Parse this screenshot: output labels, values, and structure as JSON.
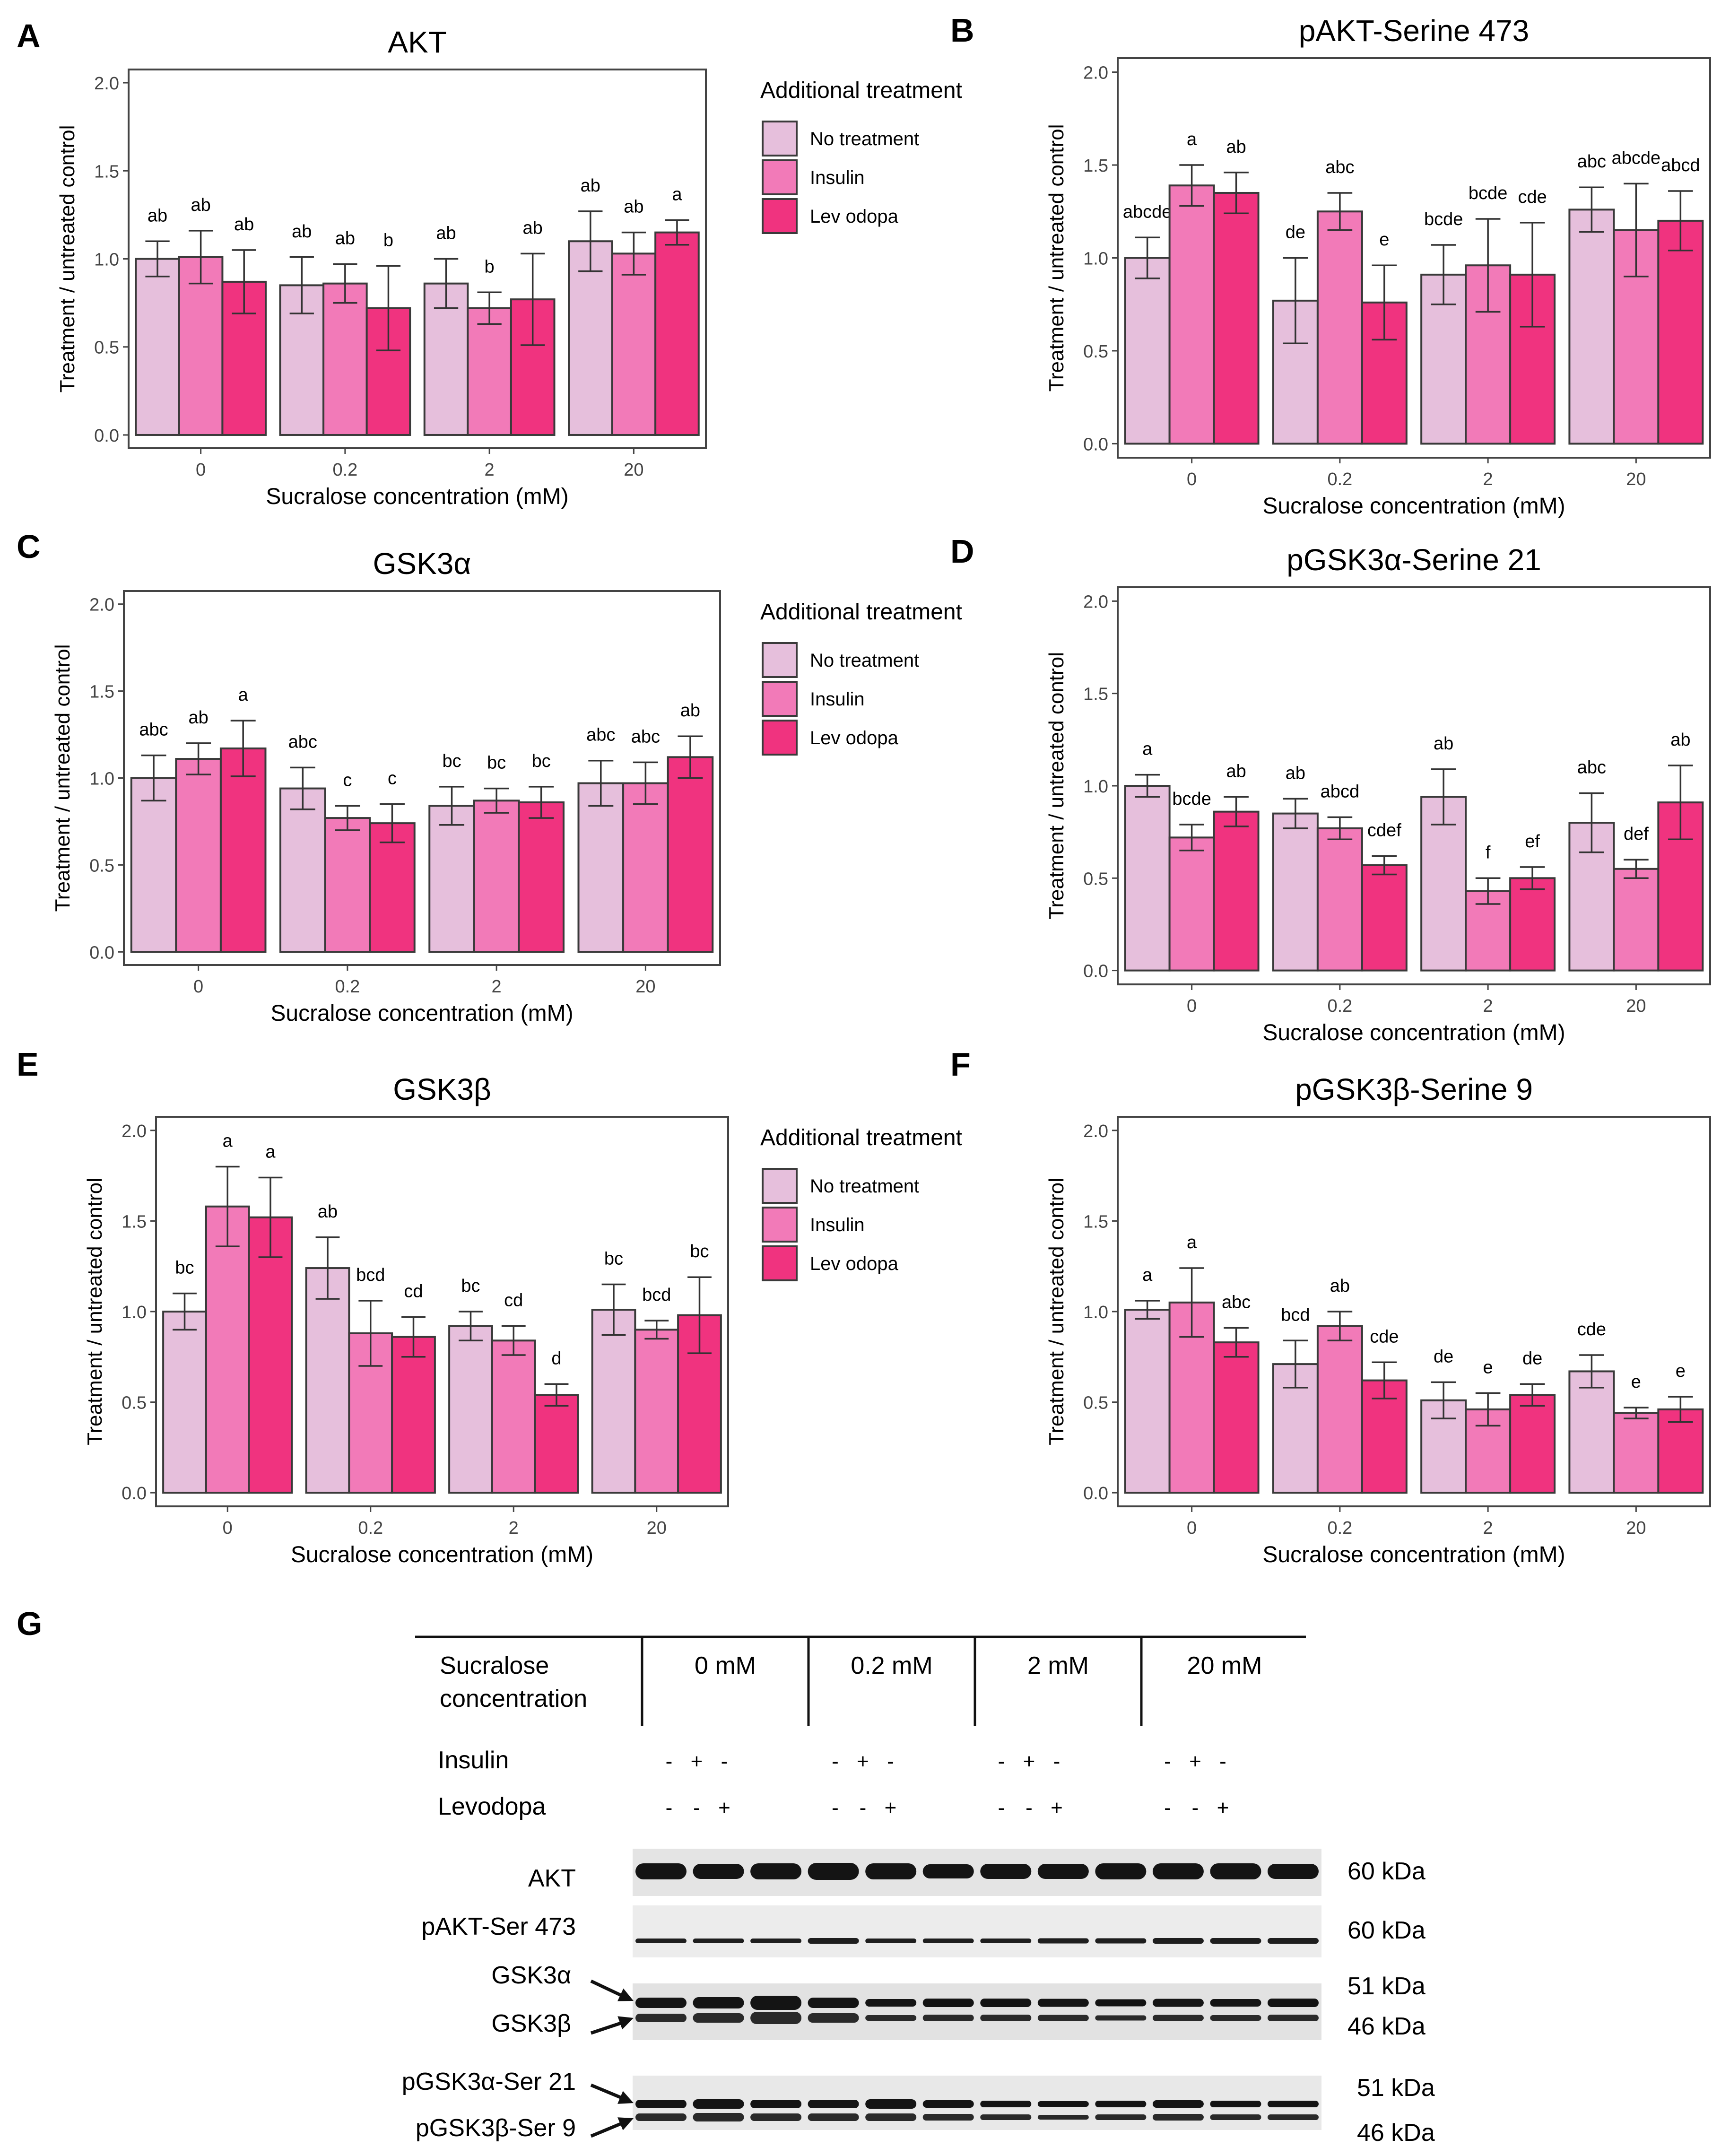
{
  "figure": {
    "y_axis_label": "Treatment / untreated control",
    "x_axis_label": "Sucralose concentration (mM)",
    "legend_title": "Additional treatment",
    "legend_items": [
      "No treatment",
      "Insulin",
      "Lev odopa"
    ],
    "series_colors": [
      "#e6bfdc",
      "#f27ab8",
      "#f0337f"
    ]
  },
  "chart_data": [
    {
      "panel": "A",
      "type": "bar",
      "title": "AKT",
      "categories": [
        "0",
        "0.2",
        "2",
        "20"
      ],
      "xlabel": "Sucralose concentration (mM)",
      "ylabel": "Treatment / untreated control",
      "ylim": [
        0,
        2.0
      ],
      "yticks": [
        "0.0",
        "0.5",
        "1.0",
        "1.5",
        "2.0"
      ],
      "legend": "right",
      "series": [
        {
          "name": "No treatment",
          "values": [
            1.0,
            0.85,
            0.86,
            1.1
          ],
          "errors": [
            0.1,
            0.16,
            0.14,
            0.17
          ],
          "letters": [
            "ab",
            "ab",
            "ab",
            "ab"
          ]
        },
        {
          "name": "Insulin",
          "values": [
            1.01,
            0.86,
            0.72,
            1.03
          ],
          "errors": [
            0.15,
            0.11,
            0.09,
            0.12
          ],
          "letters": [
            "ab",
            "ab",
            "b",
            "ab"
          ]
        },
        {
          "name": "Lev odopa",
          "values": [
            0.87,
            0.72,
            0.77,
            1.15
          ],
          "errors": [
            0.18,
            0.24,
            0.26,
            0.07
          ],
          "letters": [
            "ab",
            "b",
            "ab",
            "a"
          ]
        }
      ]
    },
    {
      "panel": "B",
      "type": "bar",
      "title": "pAKT-Serine 473",
      "categories": [
        "0",
        "0.2",
        "2",
        "20"
      ],
      "xlabel": "Sucralose concentration (mM)",
      "ylabel": "Treatment / untreated control",
      "ylim": [
        0,
        2.0
      ],
      "yticks": [
        "0.0",
        "0.5",
        "1.0",
        "1.5",
        "2.0"
      ],
      "legend": "none",
      "series": [
        {
          "name": "No treatment",
          "values": [
            1.0,
            0.77,
            0.91,
            1.26
          ],
          "errors": [
            0.11,
            0.23,
            0.16,
            0.12
          ],
          "letters": [
            "abcde",
            "de",
            "bcde",
            "abc"
          ]
        },
        {
          "name": "Insulin",
          "values": [
            1.39,
            1.25,
            0.96,
            1.15
          ],
          "errors": [
            0.11,
            0.1,
            0.25,
            0.25
          ],
          "letters": [
            "a",
            "abc",
            "bcde",
            "abcde"
          ]
        },
        {
          "name": "Lev odopa",
          "values": [
            1.35,
            0.76,
            0.91,
            1.2
          ],
          "errors": [
            0.11,
            0.2,
            0.28,
            0.16
          ],
          "letters": [
            "ab",
            "e",
            "cde",
            "abcd"
          ]
        }
      ]
    },
    {
      "panel": "C",
      "type": "bar",
      "title": "GSK3α",
      "categories": [
        "0",
        "0.2",
        "2",
        "20"
      ],
      "xlabel": "Sucralose concentration (mM)",
      "ylabel": "Treatment / untreated control",
      "ylim": [
        0,
        2.0
      ],
      "yticks": [
        "0.0",
        "0.5",
        "1.0",
        "1.5",
        "2.0"
      ],
      "legend": "right",
      "series": [
        {
          "name": "No treatment",
          "values": [
            1.0,
            0.94,
            0.84,
            0.97
          ],
          "errors": [
            0.13,
            0.12,
            0.11,
            0.13
          ],
          "letters": [
            "abc",
            "abc",
            "bc",
            "abc"
          ]
        },
        {
          "name": "Insulin",
          "values": [
            1.11,
            0.77,
            0.87,
            0.97
          ],
          "errors": [
            0.09,
            0.07,
            0.07,
            0.12
          ],
          "letters": [
            "ab",
            "c",
            "bc",
            "abc"
          ]
        },
        {
          "name": "Lev odopa",
          "values": [
            1.17,
            0.74,
            0.86,
            1.12
          ],
          "errors": [
            0.16,
            0.11,
            0.09,
            0.12
          ],
          "letters": [
            "a",
            "c",
            "bc",
            "ab"
          ]
        }
      ]
    },
    {
      "panel": "D",
      "type": "bar",
      "title": "pGSK3α-Serine 21",
      "categories": [
        "0",
        "0.2",
        "2",
        "20"
      ],
      "xlabel": "Sucralose concentration (mM)",
      "ylabel": "Treatment / untreated control",
      "ylim": [
        0,
        2.0
      ],
      "yticks": [
        "0.0",
        "0.5",
        "1.0",
        "1.5",
        "2.0"
      ],
      "legend": "none",
      "series": [
        {
          "name": "No treatment",
          "values": [
            1.0,
            0.85,
            0.94,
            0.8
          ],
          "errors": [
            0.06,
            0.08,
            0.15,
            0.16
          ],
          "letters": [
            "a",
            "ab",
            "ab",
            "abc"
          ]
        },
        {
          "name": "Insulin",
          "values": [
            0.72,
            0.77,
            0.43,
            0.55
          ],
          "errors": [
            0.07,
            0.06,
            0.07,
            0.05
          ],
          "letters": [
            "bcde",
            "abcd",
            "f",
            "def"
          ]
        },
        {
          "name": "Lev odopa",
          "values": [
            0.86,
            0.57,
            0.5,
            0.91
          ],
          "errors": [
            0.08,
            0.05,
            0.06,
            0.2
          ],
          "letters": [
            "ab",
            "cdef",
            "ef",
            "ab"
          ]
        }
      ]
    },
    {
      "panel": "E",
      "type": "bar",
      "title": "GSK3β",
      "categories": [
        "0",
        "0.2",
        "2",
        "20"
      ],
      "xlabel": "Sucralose concentration (mM)",
      "ylabel": "Treatment / untreated control",
      "ylim": [
        0,
        2.0
      ],
      "yticks": [
        "0.0",
        "0.5",
        "1.0",
        "1.5",
        "2.0"
      ],
      "legend": "right",
      "series": [
        {
          "name": "No treatment",
          "values": [
            1.0,
            1.24,
            0.92,
            1.01
          ],
          "errors": [
            0.1,
            0.17,
            0.08,
            0.14
          ],
          "letters": [
            "bc",
            "ab",
            "bc",
            "bc"
          ]
        },
        {
          "name": "Insulin",
          "values": [
            1.58,
            0.88,
            0.84,
            0.9
          ],
          "errors": [
            0.22,
            0.18,
            0.08,
            0.05
          ],
          "letters": [
            "a",
            "bcd",
            "cd",
            "bcd"
          ]
        },
        {
          "name": "Lev odopa",
          "values": [
            1.52,
            0.86,
            0.54,
            0.98
          ],
          "errors": [
            0.22,
            0.11,
            0.06,
            0.21
          ],
          "letters": [
            "a",
            "cd",
            "d",
            "bc"
          ]
        }
      ]
    },
    {
      "panel": "F",
      "type": "bar",
      "title": "pGSK3β-Serine 9",
      "categories": [
        "0",
        "0.2",
        "2",
        "20"
      ],
      "xlabel": "Sucralose concentration (mM)",
      "ylabel": "Treatment / untreated control",
      "ylim": [
        0,
        2.0
      ],
      "yticks": [
        "0.0",
        "0.5",
        "1.0",
        "1.5",
        "2.0"
      ],
      "legend": "none",
      "series": [
        {
          "name": "No treatment",
          "values": [
            1.01,
            0.71,
            0.51,
            0.67
          ],
          "errors": [
            0.05,
            0.13,
            0.1,
            0.09
          ],
          "letters": [
            "a",
            "bcd",
            "de",
            "cde"
          ]
        },
        {
          "name": "Insulin",
          "values": [
            1.05,
            0.92,
            0.46,
            0.44
          ],
          "errors": [
            0.19,
            0.08,
            0.09,
            0.03
          ],
          "letters": [
            "a",
            "ab",
            "e",
            "e"
          ]
        },
        {
          "name": "Lev odopa",
          "values": [
            0.83,
            0.62,
            0.54,
            0.46
          ],
          "errors": [
            0.08,
            0.1,
            0.06,
            0.07
          ],
          "letters": [
            "abc",
            "cde",
            "de",
            "e"
          ]
        }
      ]
    }
  ],
  "blot": {
    "panel": "G",
    "header_label": [
      "Sucralose",
      "concentration"
    ],
    "groups": [
      "0 mM",
      "0.2 mM",
      "2 mM",
      "20 mM"
    ],
    "treatment_rows": [
      {
        "label": "Insulin",
        "signs": [
          "-",
          "+",
          "-",
          "-",
          "+",
          "-",
          "-",
          "+",
          "-",
          "-",
          "+",
          "-"
        ]
      },
      {
        "label": "Levodopa",
        "signs": [
          "-",
          "-",
          "+",
          "-",
          "-",
          "+",
          "-",
          "-",
          "+",
          "-",
          "-",
          "+"
        ]
      }
    ],
    "bands": [
      {
        "label": "AKT",
        "kda": "60 kDa"
      },
      {
        "label": "pAKT-Ser 473",
        "kda": "60 kDa"
      },
      {
        "label": "GSK3α",
        "kda": "51 kDa"
      },
      {
        "label": "GSK3β",
        "kda": "46 kDa"
      },
      {
        "label": "pGSK3α-Ser 21",
        "kda": "51 kDa"
      },
      {
        "label": "pGSK3β-Ser 9",
        "kda": "46 kDa"
      }
    ]
  }
}
